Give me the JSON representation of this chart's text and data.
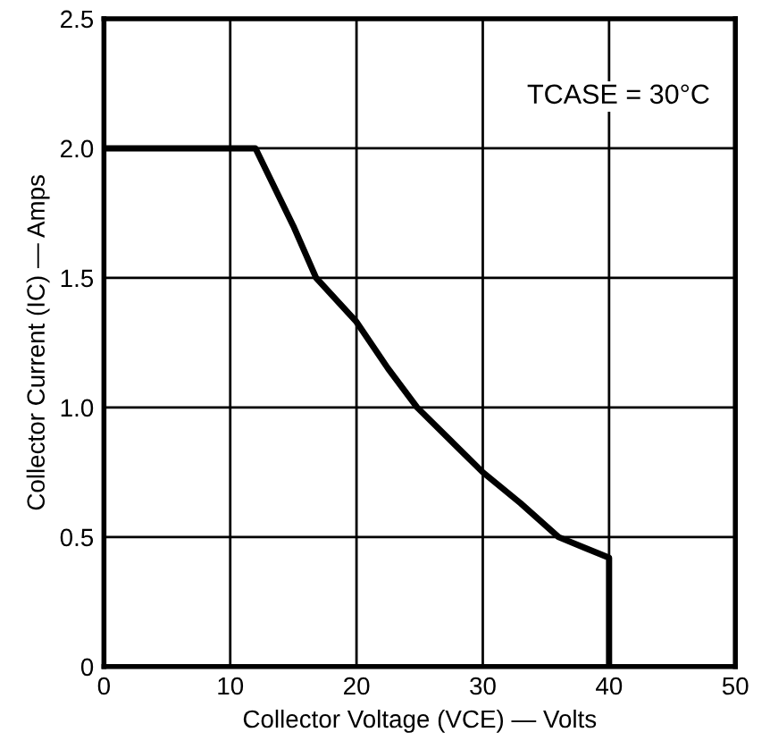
{
  "chart_data": {
    "type": "line",
    "xlabel": "Collector Voltage (VCE) — Volts",
    "ylabel": "Collector Current (IC) — Amps",
    "annotations": [
      "TCASE = 30°C"
    ],
    "series": [
      {
        "color": "#000000",
        "x": [
          0,
          12,
          13.5,
          15,
          16.8,
          20,
          22.5,
          24.8,
          27.5,
          30,
          33,
          36,
          38,
          40,
          40
        ],
        "values": [
          2.0,
          2.0,
          1.85,
          1.7,
          1.5,
          1.33,
          1.15,
          1.0,
          0.87,
          0.75,
          0.63,
          0.5,
          0.46,
          0.42,
          0
        ]
      }
    ],
    "xlim": [
      0,
      50
    ],
    "xticks": [
      0,
      10,
      20,
      30,
      40,
      50
    ],
    "ylim": [
      0,
      2.5
    ],
    "yticks": [
      0,
      {
        "value": 0.5,
        "label": "0.5"
      },
      {
        "value": 1.0,
        "label": "1.0"
      },
      {
        "value": 1.5,
        "label": "1.5"
      },
      {
        "value": 2.0,
        "label": "2.0"
      },
      {
        "value": 2.5,
        "label": "2.5"
      }
    ],
    "grid": true,
    "marker": "none",
    "line_style": "solid"
  }
}
